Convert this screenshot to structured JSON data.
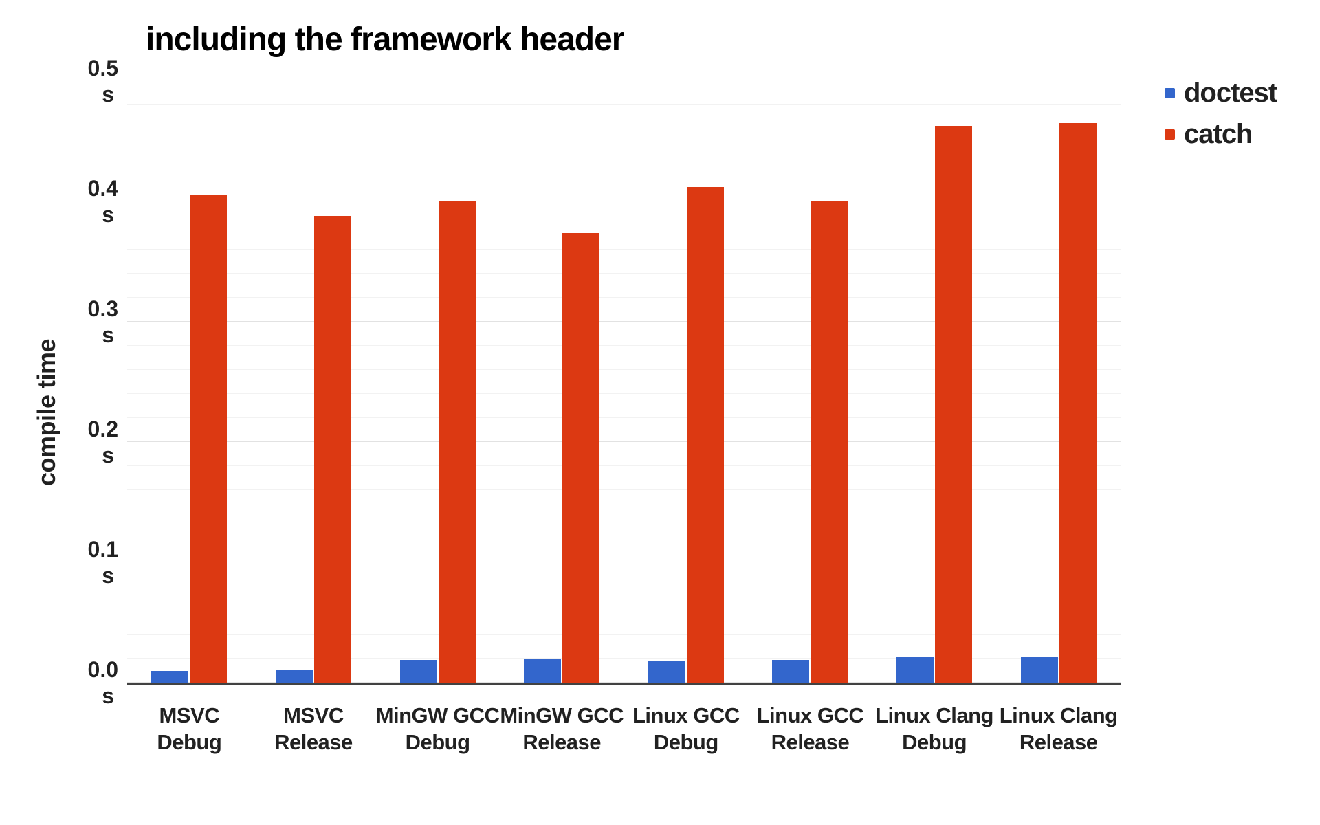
{
  "title": "including the framework header",
  "chart_data": {
    "type": "bar",
    "title": "including the framework header",
    "xlabel": "",
    "ylabel": "compile time",
    "unit": "s",
    "ylim": [
      0,
      0.5
    ],
    "grid": {
      "major_interval": 0.1,
      "minor_interval": 0.02,
      "shown": true
    },
    "legend_position": "top-right",
    "yticks": [
      {
        "label": "0.5",
        "unit": "s"
      },
      {
        "label": "0.4",
        "unit": "s"
      },
      {
        "label": "0.3",
        "unit": "s"
      },
      {
        "label": "0.2",
        "unit": "s"
      },
      {
        "label": "0.1",
        "unit": "s"
      },
      {
        "label": "0.0",
        "unit": "s"
      }
    ],
    "categories": [
      {
        "label": "MSVC Debug",
        "line1": "MSVC",
        "line2": "Debug"
      },
      {
        "label": "MSVC Release",
        "line1": "MSVC",
        "line2": "Release"
      },
      {
        "label": "MinGW GCC Debug",
        "line1": "MinGW GCC",
        "line2": "Debug"
      },
      {
        "label": "MinGW GCC Release",
        "line1": "MinGW GCC",
        "line2": "Release"
      },
      {
        "label": "Linux GCC Debug",
        "line1": "Linux GCC",
        "line2": "Debug"
      },
      {
        "label": "Linux GCC Release",
        "line1": "Linux GCC",
        "line2": "Release"
      },
      {
        "label": "Linux Clang Debug",
        "line1": "Linux Clang",
        "line2": "Debug"
      },
      {
        "label": "Linux Clang Release",
        "line1": "Linux Clang",
        "line2": "Release"
      }
    ],
    "series": [
      {
        "name": "doctest",
        "color": "#3366cc",
        "values": [
          0.01,
          0.011,
          0.019,
          0.02,
          0.018,
          0.019,
          0.022,
          0.022
        ]
      },
      {
        "name": "catch",
        "color": "#dc3912",
        "values": [
          0.405,
          0.388,
          0.4,
          0.374,
          0.412,
          0.4,
          0.463,
          0.465
        ]
      }
    ]
  },
  "colors": {
    "background": "#ffffff",
    "text": "#212121",
    "title_text": "#000000",
    "axis_line": "#424242",
    "grid_major": "#e2e2e2",
    "grid_minor": "#f2f2f2"
  }
}
